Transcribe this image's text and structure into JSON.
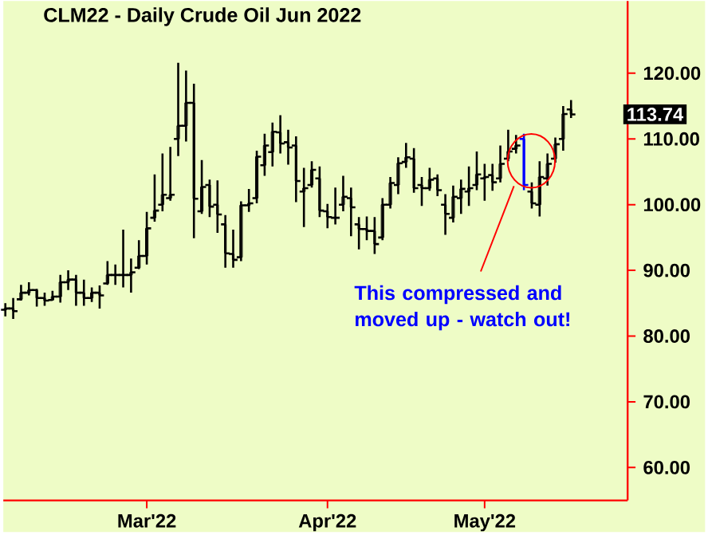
{
  "chart_data": {
    "type": "candlestick",
    "title": "CLM22 - Daily  Crude Oil Jun 2022",
    "categories": [
      null,
      null,
      null,
      null,
      null,
      null,
      null,
      null,
      null,
      null,
      null,
      null,
      null,
      null,
      null,
      null,
      null,
      null,
      "Mar'22",
      null,
      null,
      null,
      null,
      null,
      null,
      null,
      null,
      null,
      null,
      null,
      null,
      null,
      null,
      null,
      null,
      null,
      null,
      null,
      null,
      null,
      null,
      "Apr'22",
      null,
      null,
      null,
      null,
      null,
      null,
      null,
      null,
      null,
      null,
      null,
      null,
      null,
      null,
      null,
      null,
      null,
      null,
      null,
      "May'22",
      null,
      null,
      null,
      null,
      null,
      null,
      null,
      null,
      null,
      null,
      null
    ],
    "ohlc": [
      [
        84.0,
        85.0,
        83.0,
        84.2
      ],
      [
        84.2,
        85.8,
        82.6,
        83.8
      ],
      [
        85.6,
        87.8,
        85.4,
        86.6
      ],
      [
        86.6,
        88.2,
        86.2,
        87.0
      ],
      [
        87.0,
        87.2,
        84.5,
        85.8
      ],
      [
        85.8,
        86.6,
        84.6,
        85.4
      ],
      [
        85.5,
        86.9,
        85.4,
        86.0
      ],
      [
        86.0,
        89.3,
        85.1,
        88.2
      ],
      [
        88.2,
        90.0,
        87.0,
        88.6
      ],
      [
        88.6,
        89.3,
        84.6,
        86.6
      ],
      [
        86.6,
        88.6,
        84.6,
        85.8
      ],
      [
        85.8,
        87.4,
        85.2,
        86.6
      ],
      [
        86.6,
        87.7,
        84.2,
        86.2
      ],
      [
        88.0,
        91.4,
        87.8,
        89.3
      ],
      [
        89.3,
        90.9,
        87.8,
        89.3
      ],
      [
        89.3,
        96.2,
        87.4,
        89.3
      ],
      [
        89.3,
        91.8,
        86.6,
        89.7
      ],
      [
        90.4,
        94.6,
        90.2,
        92.2
      ],
      [
        92.2,
        98.9,
        90.9,
        96.4
      ],
      [
        98.0,
        104.6,
        97.4,
        99.1
      ],
      [
        100.0,
        107.8,
        99.0,
        101.5
      ],
      [
        101.0,
        108.8,
        100.6,
        101.5
      ],
      [
        110.0,
        121.6,
        107.4,
        112.0
      ],
      [
        112.0,
        120.4,
        109.6,
        115.5
      ],
      [
        115.5,
        118.4,
        94.9,
        100.9
      ],
      [
        99.0,
        106.8,
        98.6,
        102.7
      ],
      [
        103.0,
        103.8,
        98.1,
        99.7
      ],
      [
        100.0,
        103.7,
        95.7,
        98.5
      ],
      [
        97.0,
        98.4,
        90.4,
        92.6
      ],
      [
        92.5,
        96.2,
        90.4,
        91.6
      ],
      [
        92.0,
        100.5,
        91.4,
        99.9
      ],
      [
        99.9,
        102.4,
        98.9,
        100.2
      ],
      [
        101.0,
        108.2,
        100.2,
        107.3
      ],
      [
        106.0,
        110.8,
        104.4,
        109.0
      ],
      [
        108.0,
        112.5,
        105.8,
        111.1
      ],
      [
        111.0,
        113.6,
        107.8,
        109.3
      ],
      [
        109.5,
        111.4,
        106.1,
        108.7
      ],
      [
        109.0,
        110.4,
        100.4,
        103.6
      ],
      [
        102.0,
        105.6,
        96.6,
        102.5
      ],
      [
        103.0,
        106.6,
        102.6,
        105.3
      ],
      [
        104.0,
        105.8,
        98.1,
        99.1
      ],
      [
        99.0,
        100.1,
        96.4,
        98.1
      ],
      [
        98.0,
        102.6,
        97.0,
        98.0
      ],
      [
        100.0,
        104.4,
        99.0,
        101.2
      ],
      [
        101.0,
        102.6,
        95.2,
        99.6
      ],
      [
        97.0,
        98.1,
        93.2,
        96.3
      ],
      [
        96.3,
        98.2,
        94.6,
        96.0
      ],
      [
        96.0,
        98.1,
        92.5,
        94.0
      ],
      [
        95.0,
        101.0,
        94.6,
        100.0
      ],
      [
        100.0,
        104.2,
        99.4,
        103.3
      ],
      [
        103.0,
        107.2,
        101.6,
        106.3
      ],
      [
        106.5,
        109.4,
        105.6,
        107.2
      ],
      [
        107.0,
        108.6,
        101.8,
        102.5
      ],
      [
        103.0,
        104.2,
        99.8,
        102.5
      ],
      [
        102.5,
        105.6,
        102.1,
        103.8
      ],
      [
        104.0,
        104.6,
        101.3,
        102.2
      ],
      [
        100.0,
        101.6,
        95.4,
        98.6
      ],
      [
        98.0,
        102.9,
        97.3,
        101.2
      ],
      [
        101.0,
        103.8,
        98.6,
        102.4
      ],
      [
        102.0,
        105.8,
        99.8,
        102.5
      ],
      [
        103.0,
        108.1,
        102.2,
        104.6
      ],
      [
        104.0,
        106.2,
        100.6,
        104.2
      ],
      [
        104.5,
        106.2,
        102.1,
        103.4
      ],
      [
        104.0,
        109.0,
        103.4,
        106.2
      ],
      [
        107.0,
        111.4,
        106.6,
        108.1
      ],
      [
        108.5,
        110.6,
        107.8,
        109.0
      ],
      [
        110.0,
        110.8,
        102.2,
        103.0
      ],
      [
        102.0,
        103.4,
        99.4,
        100.2
      ],
      [
        100.0,
        106.6,
        98.2,
        104.2
      ],
      [
        104.0,
        107.8,
        102.9,
        106.2
      ],
      [
        107.0,
        110.2,
        106.4,
        109.2
      ],
      [
        110.0,
        115.0,
        108.2,
        113.8
      ],
      [
        114.5,
        115.9,
        113.2,
        113.74
      ]
    ],
    "colors": [
      "#000000",
      "#000000",
      "#000000",
      "#000000",
      "#000000",
      "#000000",
      "#000000",
      "#000000",
      "#000000",
      "#000000",
      "#000000",
      "#000000",
      "#000000",
      "#000000",
      "#000000",
      "#000000",
      "#000000",
      "#000000",
      "#000000",
      "#000000",
      "#000000",
      "#000000",
      "#000000",
      "#000000",
      "#000000",
      "#000000",
      "#000000",
      "#000000",
      "#000000",
      "#000000",
      "#000000",
      "#000000",
      "#000000",
      "#000000",
      "#000000",
      "#000000",
      "#000000",
      "#000000",
      "#000000",
      "#000000",
      "#000000",
      "#000000",
      "#000000",
      "#000000",
      "#000000",
      "#000000",
      "#000000",
      "#000000",
      "#000000",
      "#000000",
      "#000000",
      "#000000",
      "#000000",
      "#000000",
      "#000000",
      "#000000",
      "#000000",
      "#000000",
      "#000000",
      "#000000",
      "#000000",
      "#000000",
      "#000000",
      "#000000",
      "#000000",
      "#000000",
      "#0000ff",
      "#000000",
      "#000000",
      "#000000",
      "#000000",
      "#000000",
      "#000000"
    ],
    "ylim": [
      55,
      131
    ],
    "yticks": [
      {
        "value": 60,
        "label": "60.00"
      },
      {
        "value": 70,
        "label": "70.00"
      },
      {
        "value": 80,
        "label": "80.00"
      },
      {
        "value": 90,
        "label": "90.00"
      },
      {
        "value": 100,
        "label": "100.00"
      },
      {
        "value": 110,
        "label": "110.00"
      },
      {
        "value": 120,
        "label": "120.00"
      }
    ],
    "annotations": [
      "113.74",
      "This compressed and moved up - watch out!"
    ]
  }
}
